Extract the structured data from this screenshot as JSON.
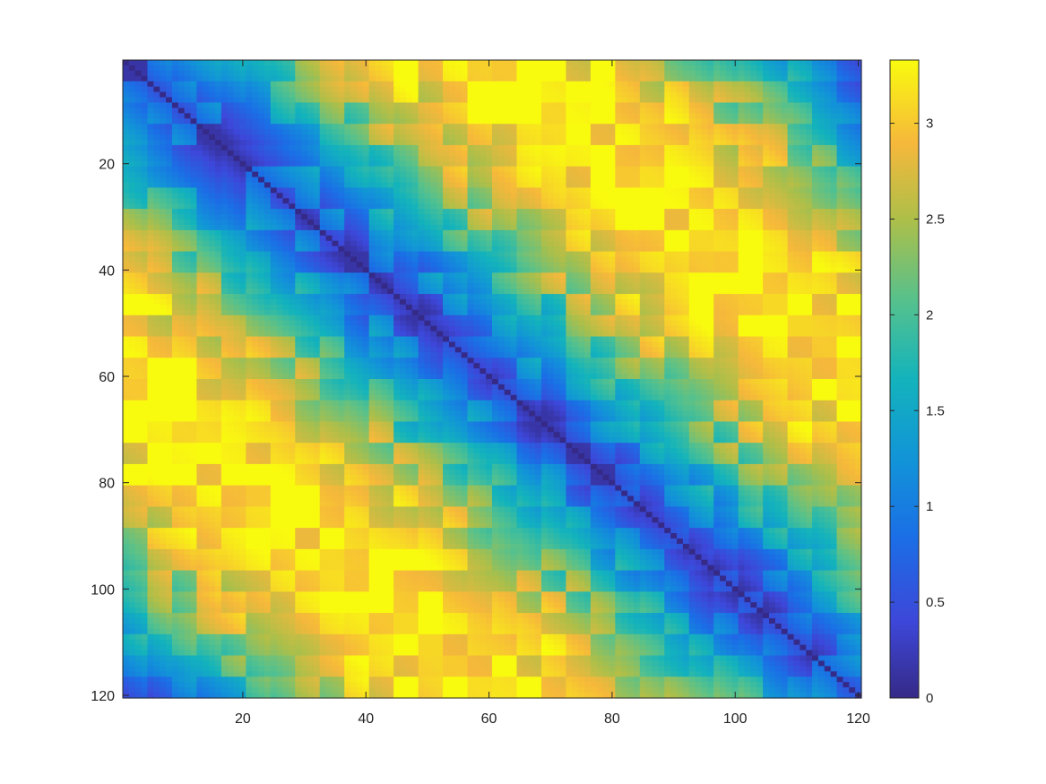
{
  "chart_data": {
    "type": "heatmap",
    "title": "",
    "xlabel": "",
    "ylabel": "",
    "n": 120,
    "block_size": 4,
    "xlim": [
      1,
      120
    ],
    "ylim": [
      1,
      120
    ],
    "y_reversed": true,
    "x_ticks": [
      20,
      40,
      60,
      80,
      100,
      120
    ],
    "x_tick_labels": [
      "20",
      "40",
      "60",
      "80",
      "100",
      "120"
    ],
    "y_ticks": [
      20,
      40,
      60,
      80,
      100,
      120
    ],
    "y_tick_labels": [
      "20",
      "40",
      "60",
      "80",
      "100",
      "120"
    ],
    "value_range": [
      0,
      3.33
    ],
    "colormap": "parula",
    "colorbar_ticks": [
      0,
      0.5,
      1,
      1.5,
      2,
      2.5,
      3
    ],
    "colorbar_tick_labels": [
      "0",
      "0.5",
      "1",
      "1.5",
      "2",
      "2.5",
      "3"
    ],
    "description": "Symmetric distance matrix: zero on the diagonal, values rising with |i-j| up to about 3.3 near |i-j|=60, falling again toward the anti-corners",
    "peak_distance": 60,
    "peak_value": 3.3
  }
}
